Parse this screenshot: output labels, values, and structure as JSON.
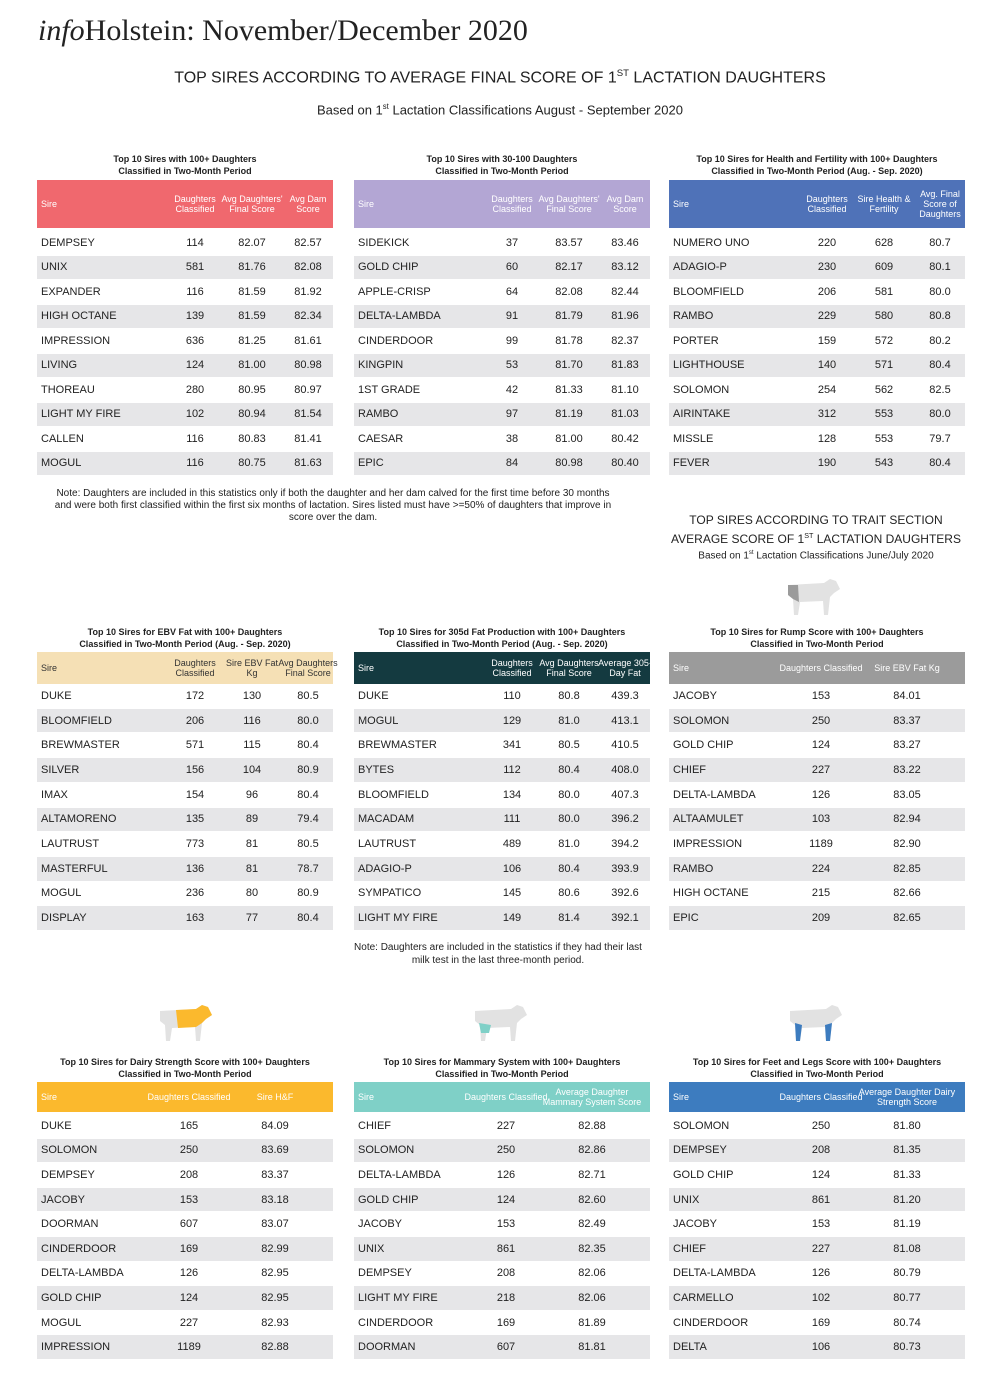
{
  "header": {
    "title_prefix": "info",
    "title": "Holstein: November/December 2020"
  },
  "heading": {
    "parts": [
      "TOP SIRES ACCORDING TO AVERAGE FINAL SCORE OF 1",
      "ST",
      " LACTATION DAUGHTERS"
    ]
  },
  "subheading": {
    "parts": [
      "Based on 1",
      "st",
      " Lactation Classifications August - September 2020"
    ]
  },
  "note1": "Note: Daughters are included in this statistics only if both the daughter and her dam calved for the first time before 30 months and were both first classified within the first six months of lactation.  Sires listed must have >=50% of daughters that improve in score over the dam.",
  "trait_heading": {
    "line1": "TOP SIRES ACCORDING TO TRAIT SECTION",
    "line2": [
      "AVERAGE SCORE OF 1",
      "ST",
      " LACTATION DAUGHTERS"
    ]
  },
  "trait_subheading": {
    "parts": [
      "Based on 1",
      "st",
      " Lactation Classifications June/July 2020"
    ]
  },
  "note2": "Note: Daughters are included in the statistics if they had their last milk test in the last three-month period.",
  "tables": [
    {
      "title": [
        "Top 10 Sires with 100+ Daughters",
        "Classified in Two-Month Period"
      ],
      "color": "#f0686e",
      "columns": [
        "Sire",
        "Daughters Classified",
        "Avg Daughters' Final Score",
        "Avg Dam Score"
      ],
      "rows": [
        [
          "DEMPSEY",
          "114",
          "82.07",
          "82.57"
        ],
        [
          "UNIX",
          "581",
          "81.76",
          "82.08"
        ],
        [
          "EXPANDER",
          "116",
          "81.59",
          "81.92"
        ],
        [
          "HIGH OCTANE",
          "139",
          "81.59",
          "82.34"
        ],
        [
          "IMPRESSION",
          "636",
          "81.25",
          "81.61"
        ],
        [
          "LIVING",
          "124",
          "81.00",
          "80.98"
        ],
        [
          "THOREAU",
          "280",
          "80.95",
          "80.97"
        ],
        [
          "LIGHT MY FIRE",
          "102",
          "80.94",
          "81.54"
        ],
        [
          "CALLEN",
          "116",
          "80.83",
          "81.41"
        ],
        [
          "MOGUL",
          "116",
          "80.75",
          "81.63"
        ]
      ]
    },
    {
      "title": [
        "Top 10 Sires with 30-100 Daughters",
        "Classified in Two-Month Period"
      ],
      "color": "#b3a6d4",
      "columns": [
        "Sire",
        "Daughters Classified",
        "Avg Daughters' Final Score",
        "Avg Dam Score"
      ],
      "rows": [
        [
          "SIDEKICK",
          "37",
          "83.57",
          "83.46"
        ],
        [
          "GOLD CHIP",
          "60",
          "82.17",
          "83.12"
        ],
        [
          "APPLE-CRISP",
          "64",
          "82.08",
          "82.44"
        ],
        [
          "DELTA-LAMBDA",
          "91",
          "81.79",
          "81.96"
        ],
        [
          "CINDERDOOR",
          "99",
          "81.78",
          "82.37"
        ],
        [
          "KINGPIN",
          "53",
          "81.70",
          "81.83"
        ],
        [
          "1ST GRADE",
          "42",
          "81.33",
          "81.10"
        ],
        [
          "RAMBO",
          "97",
          "81.19",
          "81.03"
        ],
        [
          "CAESAR",
          "38",
          "81.00",
          "80.42"
        ],
        [
          "EPIC",
          "84",
          "80.98",
          "80.40"
        ]
      ]
    },
    {
      "title": [
        "Top 10 Sires for Health and Fertility with 100+ Daughters",
        "Classified in Two-Month Period (Aug. - Sep. 2020)"
      ],
      "color": "#4f72b8",
      "columns": [
        "Sire",
        "Daughters Classified",
        "Sire Health & Fertility",
        "Avg. Final Score of Daughters"
      ],
      "rows": [
        [
          "NUMERO UNO",
          "220",
          "628",
          "80.7"
        ],
        [
          "ADAGIO-P",
          "230",
          "609",
          "80.1"
        ],
        [
          "BLOOMFIELD",
          "206",
          "581",
          "80.0"
        ],
        [
          "RAMBO",
          "229",
          "580",
          "80.8"
        ],
        [
          "PORTER",
          "159",
          "572",
          "80.2"
        ],
        [
          "LIGHTHOUSE",
          "140",
          "571",
          "80.4"
        ],
        [
          "SOLOMON",
          "254",
          "562",
          "82.5"
        ],
        [
          "AIRINTAKE",
          "312",
          "553",
          "80.0"
        ],
        [
          "MISSLE",
          "128",
          "553",
          "79.7"
        ],
        [
          "FEVER",
          "190",
          "543",
          "80.4"
        ]
      ]
    },
    {
      "title": [
        "Top 10 Sires for EBV Fat with 100+ Daughters",
        "Classified in Two-Month Period (Aug. - Sep. 2020)"
      ],
      "color": "#f5e0b5",
      "columns": [
        "Sire",
        "Daughters Classified",
        "Sire EBV Fat Kg",
        "Avg Daughters Final Score"
      ],
      "rows": [
        [
          "DUKE",
          "172",
          "130",
          "80.5"
        ],
        [
          "BLOOMFIELD",
          "206",
          "116",
          "80.0"
        ],
        [
          "BREWMASTER",
          "571",
          "115",
          "80.4"
        ],
        [
          "SILVER",
          "156",
          "104",
          "80.9"
        ],
        [
          "IMAX",
          "154",
          "96",
          "80.4"
        ],
        [
          "ALTAMORENO",
          "135",
          "89",
          "79.4"
        ],
        [
          "LAUTRUST",
          "773",
          "81",
          "80.5"
        ],
        [
          "MASTERFUL",
          "136",
          "81",
          "78.7"
        ],
        [
          "MOGUL",
          "236",
          "80",
          "80.9"
        ],
        [
          "DISPLAY",
          "163",
          "77",
          "80.4"
        ]
      ]
    },
    {
      "title": [
        "Top 10 Sires for 305d Fat Production with 100+ Daughters",
        "Classified in Two-Month Period (Aug. - Sep. 2020)"
      ],
      "color": "#143a40",
      "columns": [
        "Sire",
        "Daughters Classified",
        "Avg Daughters Final Score",
        "Average 305-Day Fat"
      ],
      "rows": [
        [
          "DUKE",
          "110",
          "80.8",
          "439.3"
        ],
        [
          "MOGUL",
          "129",
          "81.0",
          "413.1"
        ],
        [
          "BREWMASTER",
          "341",
          "80.5",
          "410.5"
        ],
        [
          "BYTES",
          "112",
          "80.4",
          "408.0"
        ],
        [
          "BLOOMFIELD",
          "134",
          "80.0",
          "407.3"
        ],
        [
          "MACADAM",
          "111",
          "80.0",
          "396.2"
        ],
        [
          "LAUTRUST",
          "489",
          "81.0",
          "394.2"
        ],
        [
          "ADAGIO-P",
          "106",
          "80.4",
          "393.9"
        ],
        [
          "SYMPATICO",
          "145",
          "80.6",
          "392.6"
        ],
        [
          "LIGHT MY FIRE",
          "149",
          "81.4",
          "392.1"
        ]
      ]
    },
    {
      "title": [
        "Top 10 Sires for Rump Score with 100+ Daughters",
        "Classified in Two-Month Period"
      ],
      "color": "#9b9b9b",
      "columns": [
        "Sire",
        "Daughters Classified",
        "Sire EBV Fat Kg"
      ],
      "rows": [
        [
          "JACOBY",
          "153",
          "84.01"
        ],
        [
          "SOLOMON",
          "250",
          "83.37"
        ],
        [
          "GOLD CHIP",
          "124",
          "83.27"
        ],
        [
          "CHIEF",
          "227",
          "83.22"
        ],
        [
          "DELTA-LAMBDA",
          "126",
          "83.05"
        ],
        [
          "ALTAAMULET",
          "103",
          "82.94"
        ],
        [
          "IMPRESSION",
          "1189",
          "82.90"
        ],
        [
          "RAMBO",
          "224",
          "82.85"
        ],
        [
          "HIGH OCTANE",
          "215",
          "82.66"
        ],
        [
          "EPIC",
          "209",
          "82.65"
        ]
      ]
    },
    {
      "title": [
        "Top 10 Sires for Dairy Strength Score with 100+ Daughters",
        "Classified in Two-Month Period"
      ],
      "color": "#fbb92d",
      "columns": [
        "Sire",
        "Daughters Classified",
        "Sire H&F"
      ],
      "rows": [
        [
          "DUKE",
          "165",
          "84.09"
        ],
        [
          "SOLOMON",
          "250",
          "83.69"
        ],
        [
          "DEMPSEY",
          "208",
          "83.37"
        ],
        [
          "JACOBY",
          "153",
          "83.18"
        ],
        [
          "DOORMAN",
          "607",
          "83.07"
        ],
        [
          "CINDERDOOR",
          "169",
          "82.99"
        ],
        [
          "DELTA-LAMBDA",
          "126",
          "82.95"
        ],
        [
          "GOLD CHIP",
          "124",
          "82.95"
        ],
        [
          "MOGUL",
          "227",
          "82.93"
        ],
        [
          "IMPRESSION",
          "1189",
          "82.88"
        ]
      ]
    },
    {
      "title": [
        "Top 10 Sires for Mammary System with 100+ Daughters",
        "Classified in Two-Month Period"
      ],
      "color": "#7fd0c7",
      "columns": [
        "Sire",
        "Daughters Classified",
        "Average Daughter Mammary System Score"
      ],
      "rows": [
        [
          "CHIEF",
          "227",
          "82.88"
        ],
        [
          "SOLOMON",
          "250",
          "82.86"
        ],
        [
          "DELTA-LAMBDA",
          "126",
          "82.71"
        ],
        [
          "GOLD CHIP",
          "124",
          "82.60"
        ],
        [
          "JACOBY",
          "153",
          "82.49"
        ],
        [
          "UNIX",
          "861",
          "82.35"
        ],
        [
          "DEMPSEY",
          "208",
          "82.06"
        ],
        [
          "LIGHT MY FIRE",
          "218",
          "82.06"
        ],
        [
          "CINDERDOOR",
          "169",
          "81.89"
        ],
        [
          "DOORMAN",
          "607",
          "81.81"
        ]
      ]
    },
    {
      "title": [
        "Top 10 Sires for Feet and Legs Score with 100+ Daughters",
        "Classified in Two-Month Period"
      ],
      "color": "#3d7cbf",
      "columns": [
        "Sire",
        "Daughters Classified",
        "Average Daughter Dairy Strength Score"
      ],
      "rows": [
        [
          "SOLOMON",
          "250",
          "81.80"
        ],
        [
          "DEMPSEY",
          "208",
          "81.35"
        ],
        [
          "GOLD CHIP",
          "124",
          "81.33"
        ],
        [
          "UNIX",
          "861",
          "81.20"
        ],
        [
          "JACOBY",
          "153",
          "81.19"
        ],
        [
          "CHIEF",
          "227",
          "81.08"
        ],
        [
          "DELTA-LAMBDA",
          "126",
          "80.79"
        ],
        [
          "CARMELLO",
          "102",
          "80.77"
        ],
        [
          "CINDERDOOR",
          "169",
          "80.74"
        ],
        [
          "DELTA",
          "106",
          "80.73"
        ]
      ]
    }
  ]
}
